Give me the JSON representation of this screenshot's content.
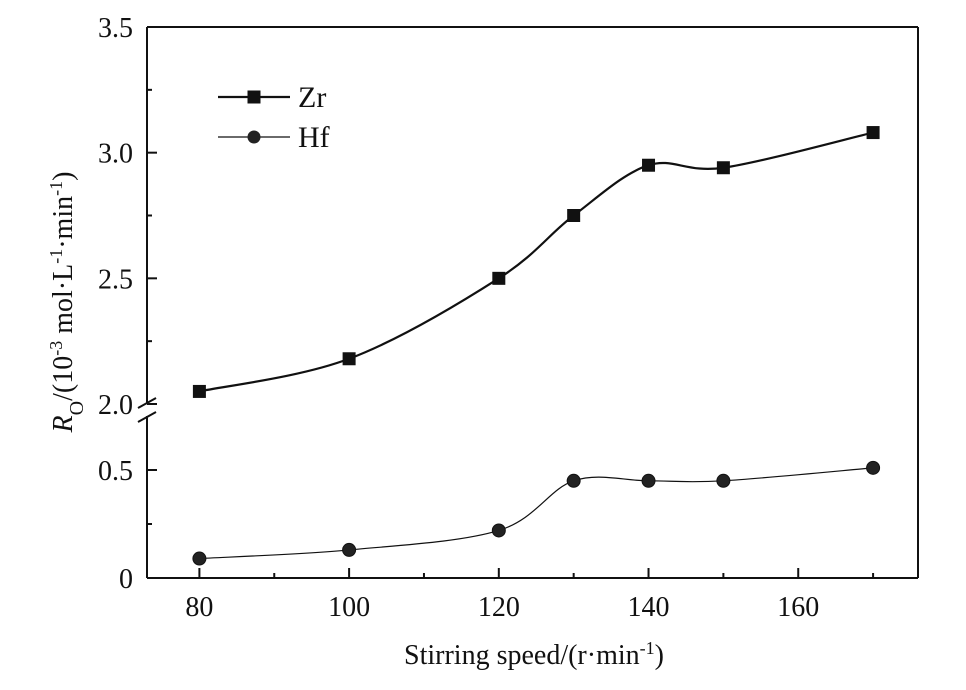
{
  "chart_data": {
    "type": "line",
    "title": "",
    "xlabel": "Stirring speed/(r·min",
    "xlabel_sup": "-1",
    "xlabel_close": ")",
    "ylabel": {
      "symbol": "R",
      "subscript": "O",
      "open": "/(10",
      "exp": "-3",
      "unit_mid": " mol·L",
      "exp2": "-1",
      "unit_mid2": "·min",
      "exp3": "-1",
      "close": ")"
    },
    "xlim": [
      73,
      176
    ],
    "x_ticks": [
      "80",
      "100",
      "120",
      "140",
      "160"
    ],
    "y_ticks_lower": [
      "0",
      "0.5"
    ],
    "y_ticks_upper": [
      "2.0",
      "2.5",
      "3.0",
      "3.5"
    ],
    "axis_break": {
      "lower_range": [
        0,
        0.75
      ],
      "upper_range": [
        2.0,
        3.5
      ]
    },
    "legend": {
      "placement": "top-left"
    },
    "series": [
      {
        "name": "Zr",
        "marker": "square",
        "x": [
          80,
          100,
          120,
          130,
          140,
          150,
          170
        ],
        "y": [
          2.05,
          2.18,
          2.5,
          2.75,
          2.95,
          2.94,
          3.08
        ]
      },
      {
        "name": "Hf",
        "marker": "circle",
        "x": [
          80,
          100,
          120,
          130,
          140,
          150,
          170
        ],
        "y": [
          0.09,
          0.13,
          0.22,
          0.45,
          0.45,
          0.45,
          0.51
        ]
      }
    ]
  }
}
